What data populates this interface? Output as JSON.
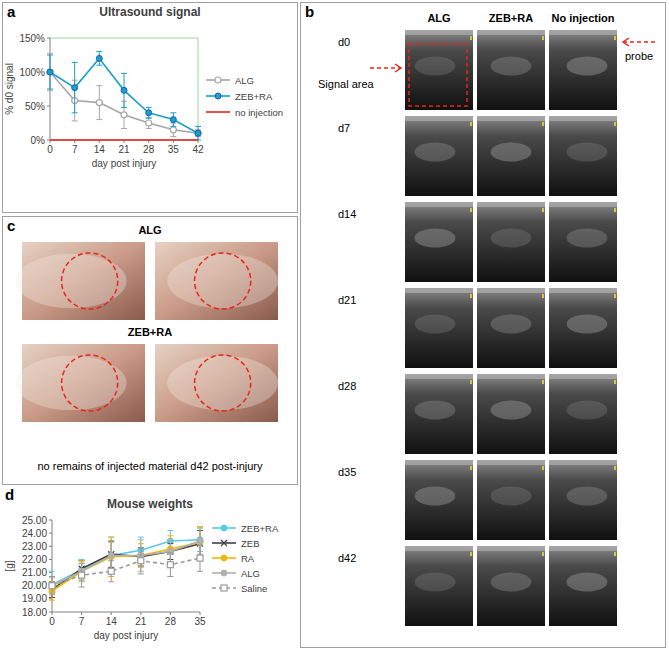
{
  "chart_data": [
    {
      "type": "line",
      "title": "Ultrasound signal",
      "x_label": "day post injury",
      "y_label": "% d0 signal",
      "x": [
        0,
        7,
        14,
        21,
        28,
        35,
        42
      ],
      "xlim": [
        0,
        42
      ],
      "xticks": [
        0,
        7,
        14,
        21,
        28,
        35,
        42
      ],
      "ylim": [
        0,
        150
      ],
      "yticks": [
        {
          "value": 0,
          "label": "0%"
        },
        {
          "value": 50,
          "label": "50%"
        },
        {
          "value": 100,
          "label": "100%"
        },
        {
          "value": 150,
          "label": "150%"
        }
      ],
      "grid": false,
      "legend": "right",
      "series": [
        {
          "name": "ALG",
          "color": "#a6a6a6",
          "marker": "open-circle",
          "line_style": "solid",
          "values": [
            100,
            58,
            55,
            37,
            25,
            15,
            10
          ],
          "errors": [
            27,
            30,
            25,
            20,
            8,
            10,
            5
          ]
        },
        {
          "name": "ZEB+RA",
          "color": "#1aa0c8",
          "marker": "circle",
          "line_style": "solid",
          "values": [
            100,
            77,
            120,
            73,
            40,
            30,
            10
          ],
          "errors": [
            25,
            37,
            10,
            25,
            8,
            10,
            10
          ]
        },
        {
          "name": "no injection",
          "color": "#e8261c",
          "marker": "none",
          "line_style": "solid",
          "values": [
            0,
            0,
            0,
            0,
            0,
            0,
            0
          ]
        }
      ]
    },
    {
      "type": "line",
      "title": "Mouse weights",
      "x_label": "day post injury",
      "y_label": "[g]",
      "x": [
        0,
        7,
        14,
        21,
        28,
        35
      ],
      "xlim": [
        0,
        35
      ],
      "xticks": [
        0,
        7,
        14,
        21,
        28,
        35
      ],
      "ylim": [
        18,
        25
      ],
      "yticks": [
        {
          "value": 18,
          "label": "18.00"
        },
        {
          "value": 19,
          "label": "19.00"
        },
        {
          "value": 20,
          "label": "20.00"
        },
        {
          "value": 21,
          "label": "21.00"
        },
        {
          "value": 22,
          "label": "22.00"
        },
        {
          "value": 23,
          "label": "23.00"
        },
        {
          "value": 24,
          "label": "24.00"
        },
        {
          "value": 25,
          "label": "25.00"
        }
      ],
      "grid": false,
      "legend": "right",
      "series": [
        {
          "name": "ZEB+RA",
          "color": "#5bc8e8",
          "marker": "circle",
          "line_style": "solid",
          "values": [
            20.1,
            21.2,
            22.3,
            22.7,
            23.4,
            23.5
          ],
          "errors": [
            1.0,
            0.8,
            1.4,
            1.0,
            0.8,
            0.9
          ]
        },
        {
          "name": "ZEB",
          "color": "#404040",
          "marker": "x",
          "line_style": "solid",
          "values": [
            19.7,
            21.3,
            22.4,
            22.2,
            22.6,
            23.2
          ],
          "errors": [
            0.6,
            0.6,
            1.0,
            0.7,
            0.6,
            1.0
          ]
        },
        {
          "name": "RA",
          "color": "#f2b705",
          "marker": "circle",
          "line_style": "solid",
          "values": [
            19.6,
            21.1,
            22.2,
            22.3,
            22.8,
            23.3
          ],
          "errors": [
            0.7,
            0.8,
            1.5,
            0.9,
            1.0,
            1.2
          ]
        },
        {
          "name": "ALG",
          "color": "#b0b0b0",
          "marker": "circle",
          "line_style": "solid",
          "values": [
            20.0,
            21.1,
            22.3,
            22.3,
            22.6,
            23.4
          ],
          "errors": [
            0.6,
            0.6,
            1.0,
            1.2,
            0.9,
            1.0
          ]
        },
        {
          "name": "Saline",
          "color": "#9a9a9a",
          "marker": "open-square",
          "line_style": "dashed",
          "values": [
            20.0,
            20.8,
            21.1,
            21.9,
            21.6,
            22.1
          ],
          "errors": [
            0.7,
            0.9,
            0.8,
            1.0,
            0.9,
            1.0
          ]
        }
      ]
    }
  ],
  "panel_labels": [
    "a",
    "b",
    "c",
    "d"
  ],
  "panel_b": {
    "columns": [
      "ALG",
      "ZEB+RA",
      "No injection"
    ],
    "rows": [
      "d0",
      "d7",
      "d14",
      "d21",
      "d28",
      "d35",
      "d42"
    ],
    "signal_area": "Signal area",
    "probe": "probe"
  },
  "panel_c": {
    "groups": [
      "ALG",
      "ZEB+RA"
    ],
    "caption": "no remains of injected material d42 post-injury"
  }
}
